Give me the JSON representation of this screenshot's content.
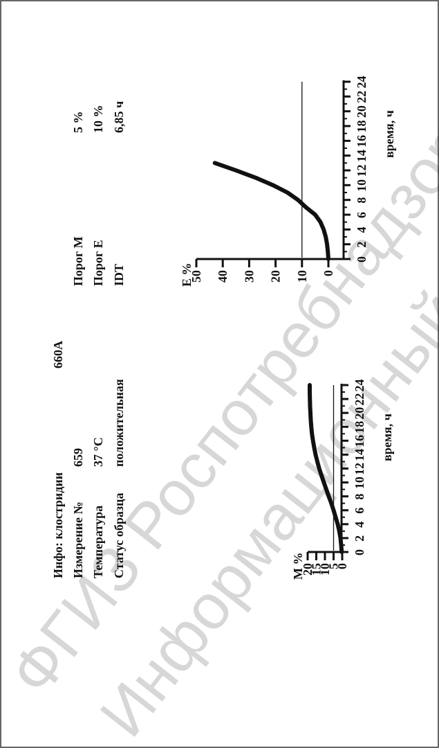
{
  "watermark": {
    "line1": "ФГИЗ Роспотребнадзор",
    "line2": "Информационный ресурс"
  },
  "info": {
    "title": "Инфо: клостридии",
    "measurement_label": "Измерение №",
    "measurement_value": "659",
    "temperature_label": "Температура",
    "temperature_value": "37 °C",
    "status_label": "Статус образца",
    "status_value": "положительная",
    "sample_id": "660А",
    "threshold_m_label": "Порог М",
    "threshold_m_value": "5 %",
    "threshold_e_label": "Порог Е",
    "threshold_e_value": "10 %",
    "idt_label": "IDT",
    "idt_value": "6,85 ч"
  },
  "chart_data": [
    {
      "type": "line",
      "ylabel": "М %",
      "xlabel": "время, ч",
      "xlim": [
        0,
        24
      ],
      "ylim": [
        0,
        20
      ],
      "x_ticks": [
        0,
        2,
        4,
        6,
        8,
        10,
        12,
        14,
        16,
        18,
        20,
        22,
        24
      ],
      "y_ticks": [
        0,
        5,
        10,
        15,
        20
      ],
      "threshold": 5,
      "series": [
        {
          "x": [
            0,
            1,
            2,
            3,
            4,
            5,
            6,
            7,
            8,
            9,
            10,
            11,
            12,
            13,
            14,
            15,
            16,
            17,
            18,
            19,
            20,
            21,
            22,
            23,
            24
          ],
          "values": [
            0.3,
            0.6,
            1.0,
            1.7,
            2.6,
            3.8,
            5.0,
            6.3,
            7.8,
            9.2,
            10.6,
            12.0,
            13.3,
            14.4,
            15.4,
            16.2,
            16.9,
            17.5,
            17.9,
            18.2,
            18.4,
            18.6,
            18.7,
            18.8,
            18.8
          ]
        }
      ]
    },
    {
      "type": "line",
      "ylabel": "Е %",
      "xlabel": "время, ч",
      "xlim": [
        0,
        24
      ],
      "ylim": [
        0,
        50
      ],
      "x_ticks": [
        0,
        2,
        4,
        6,
        8,
        10,
        12,
        14,
        16,
        18,
        20,
        22,
        24
      ],
      "y_ticks": [
        0,
        10,
        20,
        30,
        40,
        50
      ],
      "threshold": 10,
      "series": [
        {
          "x": [
            0,
            1,
            2,
            3,
            4,
            5,
            6,
            7,
            8,
            9,
            10,
            11,
            12,
            13
          ],
          "values": [
            0,
            0.2,
            0.5,
            1.0,
            1.8,
            3.0,
            5.0,
            8.5,
            11.5,
            15.5,
            21.0,
            27.5,
            35.0,
            43.0
          ]
        }
      ]
    }
  ]
}
